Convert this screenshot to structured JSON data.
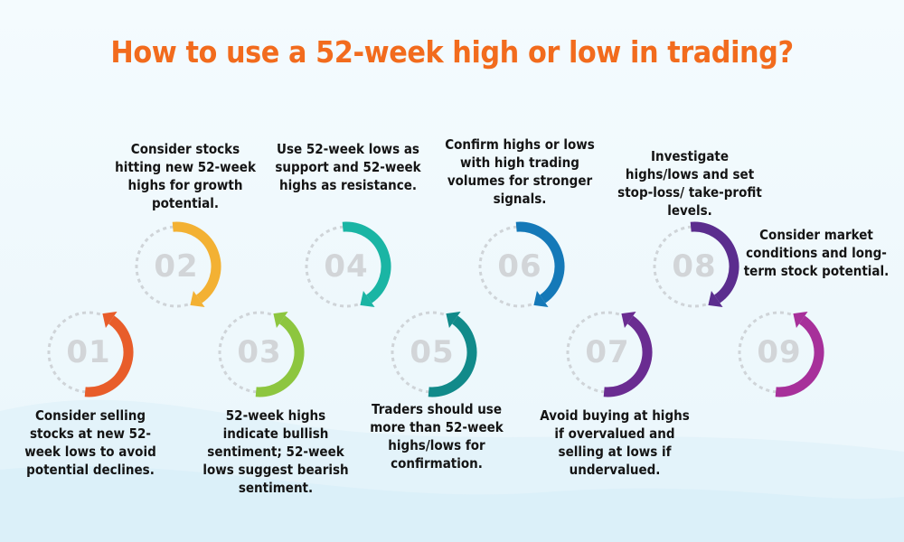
{
  "title": "How to use a 52-week high or low in trading?",
  "colors": {
    "title": "#f26b1d",
    "step_01": "#e85d2a",
    "step_02": "#f3b133",
    "step_03": "#8dc63f",
    "step_04": "#1ab5a4",
    "step_05": "#118a8a",
    "step_06": "#1579b8",
    "step_07": "#6a2c91",
    "step_08": "#5b2d8e",
    "step_09": "#a7309a"
  },
  "steps": [
    {
      "number": "01",
      "text": "Consider selling stocks at new 52-week lows to avoid potential declines."
    },
    {
      "number": "02",
      "text": "Consider stocks hitting new 52-week highs for growth potential."
    },
    {
      "number": "03",
      "text": "52-week highs indicate bullish sentiment; 52-week lows suggest bearish sentiment."
    },
    {
      "number": "04",
      "text": "Use 52-week lows as support and 52-week highs as resistance."
    },
    {
      "number": "05",
      "text": "Traders should use more than 52-week highs/lows for confirmation."
    },
    {
      "number": "06",
      "text": "Confirm highs or lows with high trading volumes for stronger signals."
    },
    {
      "number": "07",
      "text": "Avoid buying at highs if overvalued and selling at lows if undervalued."
    },
    {
      "number": "08",
      "text": "Investigate highs/lows and set stop-loss/ take-profit levels."
    },
    {
      "number": "09",
      "text": "Consider market conditions and long-term stock potential."
    }
  ]
}
